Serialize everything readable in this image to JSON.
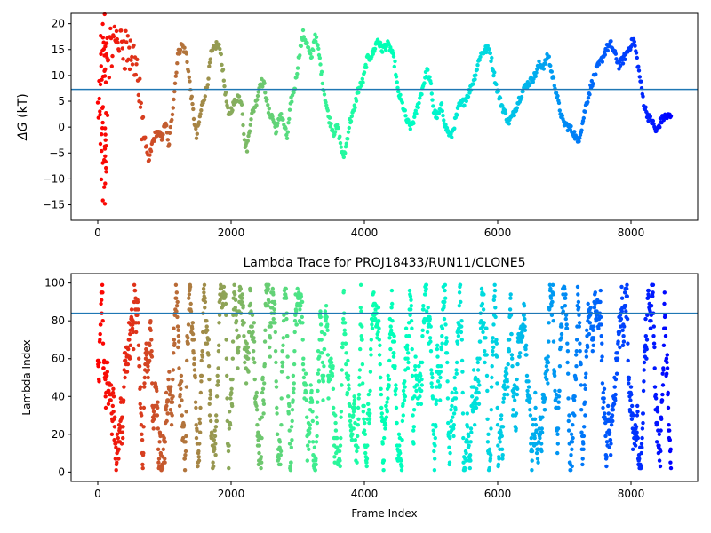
{
  "chart_data": [
    {
      "type": "scatter",
      "title": "",
      "xlabel": "",
      "ylabel": "ΔG (kT)",
      "ylabel_symbol": "ΔG",
      "ylabel_unit": " (kT)",
      "xlim": [
        -400,
        9000
      ],
      "ylim": [
        -18,
        22
      ],
      "xticks": [
        0,
        2000,
        4000,
        6000,
        8000
      ],
      "yticks": [
        -15,
        -10,
        -5,
        0,
        5,
        10,
        15,
        20
      ],
      "hline": 7.3,
      "hline_color": "#1f77b4",
      "colormap": "rainbow",
      "n_frames": 8600,
      "waypoints": [
        [
          0,
          3
        ],
        [
          80,
          12
        ],
        [
          200,
          15
        ],
        [
          300,
          18
        ],
        [
          400,
          16
        ],
        [
          500,
          14
        ],
        [
          580,
          13
        ],
        [
          620,
          5
        ],
        [
          680,
          0
        ],
        [
          760,
          -7
        ],
        [
          820,
          -3
        ],
        [
          880,
          -1
        ],
        [
          960,
          -2
        ],
        [
          1020,
          1
        ],
        [
          1060,
          -4
        ],
        [
          1120,
          3
        ],
        [
          1200,
          14
        ],
        [
          1260,
          16
        ],
        [
          1330,
          14
        ],
        [
          1420,
          4
        ],
        [
          1480,
          -2
        ],
        [
          1560,
          4
        ],
        [
          1640,
          8
        ],
        [
          1700,
          14
        ],
        [
          1780,
          16
        ],
        [
          1840,
          15
        ],
        [
          1900,
          8
        ],
        [
          1960,
          2
        ],
        [
          2020,
          4
        ],
        [
          2100,
          6
        ],
        [
          2160,
          5
        ],
        [
          2200,
          -3
        ],
        [
          2240,
          -4
        ],
        [
          2300,
          2
        ],
        [
          2380,
          5
        ],
        [
          2440,
          9
        ],
        [
          2500,
          8
        ],
        [
          2560,
          3
        ],
        [
          2620,
          2
        ],
        [
          2680,
          -1
        ],
        [
          2740,
          3
        ],
        [
          2780,
          1
        ],
        [
          2840,
          -2
        ],
        [
          2900,
          5
        ],
        [
          2960,
          8
        ],
        [
          3020,
          14
        ],
        [
          3080,
          18
        ],
        [
          3140,
          16
        ],
        [
          3200,
          13
        ],
        [
          3260,
          18
        ],
        [
          3320,
          14
        ],
        [
          3380,
          8
        ],
        [
          3460,
          2
        ],
        [
          3540,
          -1
        ],
        [
          3600,
          0
        ],
        [
          3680,
          -6
        ],
        [
          3720,
          -4
        ],
        [
          3780,
          1
        ],
        [
          3840,
          3
        ],
        [
          3900,
          7
        ],
        [
          3980,
          9
        ],
        [
          4040,
          13
        ],
        [
          4120,
          14
        ],
        [
          4200,
          17
        ],
        [
          4260,
          15
        ],
        [
          4340,
          16
        ],
        [
          4400,
          15
        ],
        [
          4460,
          12
        ],
        [
          4500,
          7
        ],
        [
          4580,
          4
        ],
        [
          4640,
          1
        ],
        [
          4700,
          0
        ],
        [
          4760,
          2
        ],
        [
          4820,
          5
        ],
        [
          4880,
          8
        ],
        [
          4940,
          11
        ],
        [
          5000,
          8
        ],
        [
          5040,
          3
        ],
        [
          5100,
          2
        ],
        [
          5160,
          4
        ],
        [
          5220,
          0
        ],
        [
          5300,
          -2
        ],
        [
          5360,
          1
        ],
        [
          5420,
          4
        ],
        [
          5500,
          5
        ],
        [
          5580,
          7
        ],
        [
          5660,
          10
        ],
        [
          5740,
          14
        ],
        [
          5820,
          15
        ],
        [
          5880,
          15
        ],
        [
          5920,
          12
        ],
        [
          5980,
          8
        ],
        [
          6040,
          5
        ],
        [
          6100,
          3
        ],
        [
          6160,
          1
        ],
        [
          6220,
          2
        ],
        [
          6280,
          4
        ],
        [
          6340,
          6
        ],
        [
          6420,
          8
        ],
        [
          6500,
          9
        ],
        [
          6560,
          10
        ],
        [
          6620,
          12
        ],
        [
          6700,
          12
        ],
        [
          6760,
          14
        ],
        [
          6800,
          11
        ],
        [
          6860,
          8
        ],
        [
          6920,
          4
        ],
        [
          6980,
          1
        ],
        [
          7060,
          0
        ],
        [
          7140,
          -1
        ],
        [
          7200,
          -3
        ],
        [
          7260,
          0
        ],
        [
          7320,
          4
        ],
        [
          7400,
          8
        ],
        [
          7480,
          11
        ],
        [
          7560,
          13
        ],
        [
          7620,
          15
        ],
        [
          7700,
          16
        ],
        [
          7760,
          14
        ],
        [
          7820,
          12
        ],
        [
          7880,
          13
        ],
        [
          7960,
          15
        ],
        [
          8040,
          17
        ],
        [
          8080,
          14
        ],
        [
          8140,
          9
        ],
        [
          8200,
          4
        ],
        [
          8260,
          2
        ],
        [
          8320,
          1
        ],
        [
          8380,
          -1
        ],
        [
          8440,
          1
        ],
        [
          8500,
          2
        ],
        [
          8600,
          2
        ]
      ]
    },
    {
      "type": "scatter",
      "title": "Lambda Trace for PROJ18433/RUN11/CLONE5",
      "xlabel": "Frame Index",
      "ylabel": "Lambda Index",
      "xlim": [
        -400,
        9000
      ],
      "ylim": [
        -5,
        105
      ],
      "xticks": [
        0,
        2000,
        4000,
        6000,
        8000
      ],
      "yticks": [
        0,
        20,
        40,
        60,
        80,
        100
      ],
      "hline": 84,
      "hline_color": "#1f77b4",
      "colormap": "rainbow",
      "lambda_max": 99,
      "n_frames": 8600
    }
  ]
}
